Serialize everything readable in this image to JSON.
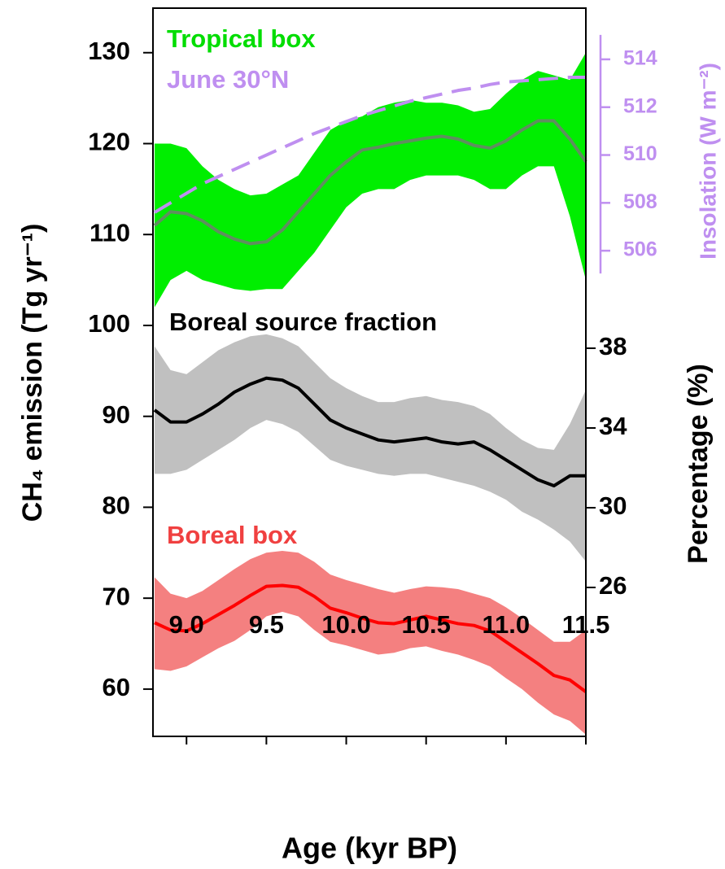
{
  "chart_data": {
    "type": "band-line",
    "xlabel": "Age (kyr BP)",
    "ylabel": "CH₄ emission (Tg yr⁻¹)",
    "y2label": "Percentage (%)",
    "y3label": "Insolation (W m⁻²)",
    "xlim": [
      8.79,
      11.5
    ],
    "xticks": [
      {
        "value": 9,
        "label": "9.0"
      },
      9.5,
      {
        "value": 10,
        "label": "10.0"
      },
      10.5,
      {
        "value": 11,
        "label": "11.0"
      },
      11.5
    ],
    "ylim": [
      54.8,
      134.9
    ],
    "yticks": [
      60,
      70,
      80,
      90,
      100,
      110,
      120,
      130
    ],
    "y2lim": [
      18.53,
      55.06
    ],
    "y2ticks": [
      26,
      30,
      34,
      38
    ],
    "y3lim": [
      485.7,
      516.14
    ],
    "y3ticks": [
      506,
      508,
      510,
      512,
      514
    ],
    "x": [
      8.8,
      8.9,
      9.0,
      9.1,
      9.2,
      9.3,
      9.4,
      9.5,
      9.6,
      9.7,
      9.8,
      9.9,
      10.0,
      10.1,
      10.2,
      10.3,
      10.4,
      10.5,
      10.6,
      10.7,
      10.8,
      10.9,
      11.0,
      11.1,
      11.2,
      11.3,
      11.4,
      11.5
    ],
    "series": [
      {
        "name": "Tropical box",
        "axis": "y",
        "color": "#00dd00",
        "line_color": "#5f8f5f",
        "band_color": "#00ee00",
        "values": [
          111,
          112.5,
          112.3,
          111.5,
          110.3,
          109.5,
          109,
          109.2,
          110.5,
          112.5,
          114.5,
          116.5,
          118,
          119.3,
          119.6,
          120,
          120.3,
          120.6,
          120.8,
          120.5,
          119.8,
          119.5,
          120.3,
          121.5,
          122.5,
          122.5,
          120.5,
          118
        ],
        "upper": [
          120,
          120,
          119.5,
          117.5,
          116,
          115,
          114.3,
          114.5,
          115.5,
          116.5,
          119,
          121.5,
          122.5,
          123,
          124,
          124.5,
          124.8,
          124.5,
          124.5,
          124.2,
          123.5,
          123.8,
          125.5,
          127,
          128,
          127.5,
          127,
          130
        ],
        "lower": [
          102,
          105,
          106,
          105,
          104.5,
          104,
          103.8,
          104,
          104,
          106,
          108,
          110.5,
          113,
          114.5,
          115,
          115,
          116,
          116.5,
          116.5,
          116.5,
          116,
          115,
          115,
          116.5,
          117.5,
          117.5,
          112,
          105
        ]
      },
      {
        "name": "June 30°N",
        "axis": "y3",
        "color": "#bf8ff0",
        "line_color": "#bf8ff0",
        "dashed": true,
        "values": [
          507.6,
          508.0,
          508.4,
          508.8,
          509.1,
          509.4,
          509.7,
          510.0,
          510.3,
          510.6,
          510.9,
          511.15,
          511.4,
          511.65,
          511.85,
          512.05,
          512.25,
          512.4,
          512.55,
          512.7,
          512.8,
          512.95,
          513.05,
          513.1,
          513.15,
          513.2,
          513.25,
          513.25
        ]
      },
      {
        "name": "Boreal source fraction",
        "axis": "y2",
        "color": "#000000",
        "line_color": "#000000",
        "band_color": "#c0c0c0",
        "values": [
          34.9,
          34.3,
          34.3,
          34.7,
          35.2,
          35.8,
          36.2,
          36.5,
          36.4,
          36.0,
          35.2,
          34.4,
          34.0,
          33.7,
          33.4,
          33.3,
          33.4,
          33.5,
          33.3,
          33.2,
          33.3,
          32.9,
          32.4,
          31.9,
          31.4,
          31.1,
          31.6,
          31.6
        ],
        "upper": [
          38.1,
          36.9,
          36.7,
          37.3,
          37.9,
          38.3,
          38.6,
          38.7,
          38.5,
          38.1,
          37.3,
          36.5,
          36.0,
          35.6,
          35.3,
          35.3,
          35.5,
          35.6,
          35.4,
          35.3,
          35.1,
          34.7,
          34.0,
          33.4,
          33.0,
          32.9,
          34.2,
          35.9
        ],
        "lower": [
          31.7,
          31.7,
          31.9,
          32.4,
          32.9,
          33.4,
          34.0,
          34.4,
          34.2,
          33.8,
          33.1,
          32.4,
          32.1,
          31.9,
          31.7,
          31.6,
          31.7,
          31.7,
          31.5,
          31.3,
          31.1,
          30.8,
          30.4,
          29.8,
          29.4,
          28.9,
          28.3,
          27.3
        ]
      },
      {
        "name": "Boreal box",
        "axis": "y",
        "color": "#f04040",
        "line_color": "#ff0000",
        "band_color": "#f48080",
        "values": [
          67.3,
          66.5,
          66.4,
          67.2,
          68.2,
          69.2,
          70.3,
          71.3,
          71.4,
          71.2,
          70.2,
          68.9,
          68.4,
          67.8,
          67.3,
          67.2,
          67.6,
          68.0,
          67.6,
          67.2,
          67.0,
          66.4,
          65.2,
          64.0,
          62.8,
          61.5,
          61.0,
          59.7
        ],
        "upper": [
          72.3,
          70.5,
          70.0,
          70.8,
          72,
          73.2,
          74.3,
          75,
          75.2,
          75,
          74,
          72.6,
          72,
          71.5,
          71,
          70.6,
          71,
          71.3,
          71.2,
          71,
          70.5,
          70,
          69,
          67.8,
          66.5,
          65.2,
          65.2,
          66.5
        ],
        "lower": [
          62.2,
          62.0,
          62.5,
          63.5,
          64.5,
          65.3,
          66.5,
          68,
          68.5,
          68,
          66.5,
          65.2,
          64.8,
          64.3,
          63.8,
          64,
          64.5,
          64.7,
          64.2,
          63.8,
          63.2,
          62.5,
          61.2,
          60,
          58.5,
          57.2,
          56.5,
          55
        ]
      }
    ]
  }
}
